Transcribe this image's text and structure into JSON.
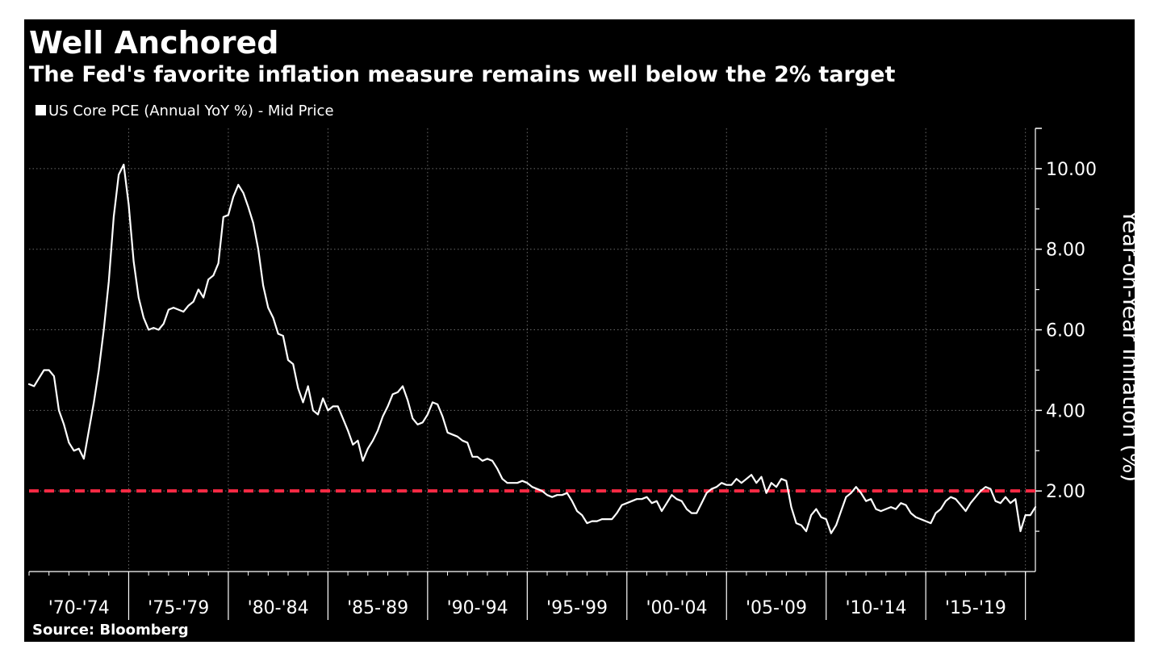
{
  "header": {
    "title": "Well Anchored",
    "subtitle": "The Fed's favorite inflation measure remains well below the 2% target"
  },
  "footer": {
    "source": "Source: Bloomberg"
  },
  "colors": {
    "background": "#000000",
    "line": "#ffffff",
    "target_line": "#ff2a44",
    "grid": "#6b6b6b"
  },
  "chart_data": {
    "type": "line",
    "legend": {
      "entries": [
        "US Core PCE (Annual YoY %) - Mid Price"
      ],
      "placement": "top-left"
    },
    "ylabel": "Year-on-Year Inflation (%)",
    "ylabel_side": "right",
    "yaxis_side": "right",
    "ylim": [
      0,
      11
    ],
    "yticks": [
      2,
      4,
      6,
      8,
      10
    ],
    "ytick_labels": [
      "2.00",
      "4.00",
      "6.00",
      "8.00",
      "10.00"
    ],
    "x_range": [
      1970,
      2020.5
    ],
    "x_period_labels": [
      "'70-'74",
      "'75-'79",
      "'80-'84",
      "'85-'89",
      "'90-'94",
      "'95-'99",
      "'00-'04",
      "'05-'09",
      "'10-'14",
      "'15-'19"
    ],
    "x_period_starts": [
      1970,
      1975,
      1980,
      1985,
      1990,
      1995,
      2000,
      2005,
      2010,
      2015
    ],
    "grid": true,
    "reference_lines": [
      {
        "y": 2.0,
        "style": "dashed",
        "color": "#ff2a44"
      }
    ],
    "series": [
      {
        "name": "US Core PCE (Annual YoY %) - Mid Price",
        "x": [
          1970.0,
          1970.25,
          1970.5,
          1970.75,
          1971.0,
          1971.25,
          1971.5,
          1971.75,
          1972.0,
          1972.25,
          1972.5,
          1972.75,
          1973.0,
          1973.25,
          1973.5,
          1973.75,
          1974.0,
          1974.25,
          1974.5,
          1974.75,
          1975.0,
          1975.25,
          1975.5,
          1975.75,
          1976.0,
          1976.25,
          1976.5,
          1976.75,
          1977.0,
          1977.25,
          1977.5,
          1977.75,
          1978.0,
          1978.25,
          1978.5,
          1978.75,
          1979.0,
          1979.25,
          1979.5,
          1979.75,
          1980.0,
          1980.25,
          1980.5,
          1980.75,
          1981.0,
          1981.25,
          1981.5,
          1981.75,
          1982.0,
          1982.25,
          1982.5,
          1982.75,
          1983.0,
          1983.25,
          1983.5,
          1983.75,
          1984.0,
          1984.25,
          1984.5,
          1984.75,
          1985.0,
          1985.25,
          1985.5,
          1985.75,
          1986.0,
          1986.25,
          1986.5,
          1986.75,
          1987.0,
          1987.25,
          1987.5,
          1987.75,
          1988.0,
          1988.25,
          1988.5,
          1988.75,
          1989.0,
          1989.25,
          1989.5,
          1989.75,
          1990.0,
          1990.25,
          1990.5,
          1990.75,
          1991.0,
          1991.25,
          1991.5,
          1991.75,
          1992.0,
          1992.25,
          1992.5,
          1992.75,
          1993.0,
          1993.25,
          1993.5,
          1993.75,
          1994.0,
          1994.25,
          1994.5,
          1994.75,
          1995.0,
          1995.25,
          1995.5,
          1995.75,
          1996.0,
          1996.25,
          1996.5,
          1996.75,
          1997.0,
          1997.25,
          1997.5,
          1997.75,
          1998.0,
          1998.25,
          1998.5,
          1998.75,
          1999.0,
          1999.25,
          1999.5,
          1999.75,
          2000.0,
          2000.25,
          2000.5,
          2000.75,
          2001.0,
          2001.25,
          2001.5,
          2001.75,
          2002.0,
          2002.25,
          2002.5,
          2002.75,
          2003.0,
          2003.25,
          2003.5,
          2003.75,
          2004.0,
          2004.25,
          2004.5,
          2004.75,
          2005.0,
          2005.25,
          2005.5,
          2005.75,
          2006.0,
          2006.25,
          2006.5,
          2006.75,
          2007.0,
          2007.25,
          2007.5,
          2007.75,
          2008.0,
          2008.25,
          2008.5,
          2008.75,
          2009.0,
          2009.25,
          2009.5,
          2009.75,
          2010.0,
          2010.25,
          2010.5,
          2010.75,
          2011.0,
          2011.25,
          2011.5,
          2011.75,
          2012.0,
          2012.25,
          2012.5,
          2012.75,
          2013.0,
          2013.25,
          2013.5,
          2013.75,
          2014.0,
          2014.25,
          2014.5,
          2014.75,
          2015.0,
          2015.25,
          2015.5,
          2015.75,
          2016.0,
          2016.25,
          2016.5,
          2016.75,
          2017.0,
          2017.25,
          2017.5,
          2017.75,
          2018.0,
          2018.25,
          2018.5,
          2018.75,
          2019.0,
          2019.25,
          2019.5,
          2019.75,
          2020.0,
          2020.25,
          2020.5
        ],
        "y": [
          4.65,
          4.6,
          4.8,
          5.0,
          5.0,
          4.85,
          4.0,
          3.65,
          3.2,
          3.0,
          3.05,
          2.8,
          3.5,
          4.2,
          5.0,
          6.0,
          7.2,
          8.8,
          9.85,
          10.1,
          9.1,
          7.7,
          6.8,
          6.3,
          6.0,
          6.05,
          6.0,
          6.15,
          6.5,
          6.55,
          6.5,
          6.45,
          6.6,
          6.7,
          7.0,
          6.8,
          7.25,
          7.35,
          7.65,
          8.8,
          8.85,
          9.3,
          9.6,
          9.4,
          9.05,
          8.65,
          8.0,
          7.1,
          6.55,
          6.3,
          5.9,
          5.85,
          5.25,
          5.15,
          4.55,
          4.2,
          4.6,
          4.0,
          3.9,
          4.3,
          4.0,
          4.1,
          4.1,
          3.8,
          3.5,
          3.15,
          3.25,
          2.75,
          3.05,
          3.25,
          3.5,
          3.85,
          4.1,
          4.4,
          4.45,
          4.6,
          4.25,
          3.8,
          3.65,
          3.7,
          3.9,
          4.2,
          4.15,
          3.85,
          3.45,
          3.4,
          3.35,
          3.25,
          3.2,
          2.85,
          2.85,
          2.75,
          2.8,
          2.75,
          2.55,
          2.3,
          2.2,
          2.2,
          2.2,
          2.25,
          2.2,
          2.1,
          2.05,
          2.0,
          1.9,
          1.85,
          1.9,
          1.9,
          1.95,
          1.75,
          1.5,
          1.4,
          1.2,
          1.25,
          1.25,
          1.3,
          1.3,
          1.3,
          1.45,
          1.65,
          1.7,
          1.75,
          1.8,
          1.8,
          1.85,
          1.7,
          1.75,
          1.5,
          1.7,
          1.9,
          1.8,
          1.75,
          1.55,
          1.45,
          1.45,
          1.7,
          1.95,
          2.05,
          2.1,
          2.2,
          2.15,
          2.15,
          2.3,
          2.2,
          2.3,
          2.4,
          2.2,
          2.35,
          1.95,
          2.2,
          2.1,
          2.3,
          2.25,
          1.6,
          1.2,
          1.15,
          1.0,
          1.4,
          1.55,
          1.35,
          1.3,
          0.95,
          1.15,
          1.5,
          1.85,
          1.95,
          2.1,
          1.95,
          1.75,
          1.8,
          1.55,
          1.5,
          1.55,
          1.6,
          1.55,
          1.7,
          1.65,
          1.45,
          1.35,
          1.3,
          1.25,
          1.2,
          1.45,
          1.55,
          1.75,
          1.85,
          1.8,
          1.65,
          1.5,
          1.7,
          1.85,
          2.0,
          2.1,
          2.05,
          1.75,
          1.7,
          1.85,
          1.7,
          1.8,
          1.0,
          1.4,
          1.4,
          1.6
        ]
      }
    ]
  }
}
